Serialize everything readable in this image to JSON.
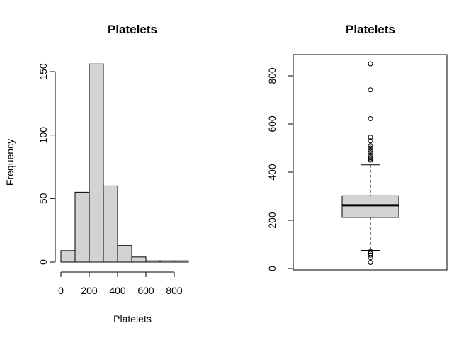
{
  "chart_data": [
    {
      "type": "bar",
      "subtype": "histogram",
      "title": "Platelets",
      "xlabel": "Platelets",
      "ylabel": "Frequency",
      "bin_edges": [
        0,
        100,
        200,
        300,
        400,
        500,
        600,
        700,
        800,
        900
      ],
      "values": [
        9,
        55,
        156,
        60,
        13,
        4,
        1,
        1,
        1
      ],
      "xlim": [
        0,
        900
      ],
      "ylim": [
        0,
        160
      ],
      "x_ticks": [
        0,
        200,
        400,
        600,
        800
      ],
      "y_ticks": [
        0,
        50,
        100,
        150
      ],
      "bar_color": "#d3d3d3",
      "grid": false
    },
    {
      "type": "box",
      "title": "Platelets",
      "ylim": [
        0,
        850
      ],
      "y_ticks": [
        0,
        200,
        400,
        600,
        800
      ],
      "whisker_low": 75,
      "q1": 212,
      "median": 262,
      "q3": 302,
      "whisker_high": 430,
      "outliers_high": [
        450,
        455,
        460,
        470,
        480,
        490,
        500,
        510,
        530,
        545,
        622,
        742,
        850
      ],
      "outliers_low": [
        25,
        45,
        55,
        62,
        70
      ],
      "box_color": "#d3d3d3",
      "grid": false
    }
  ]
}
